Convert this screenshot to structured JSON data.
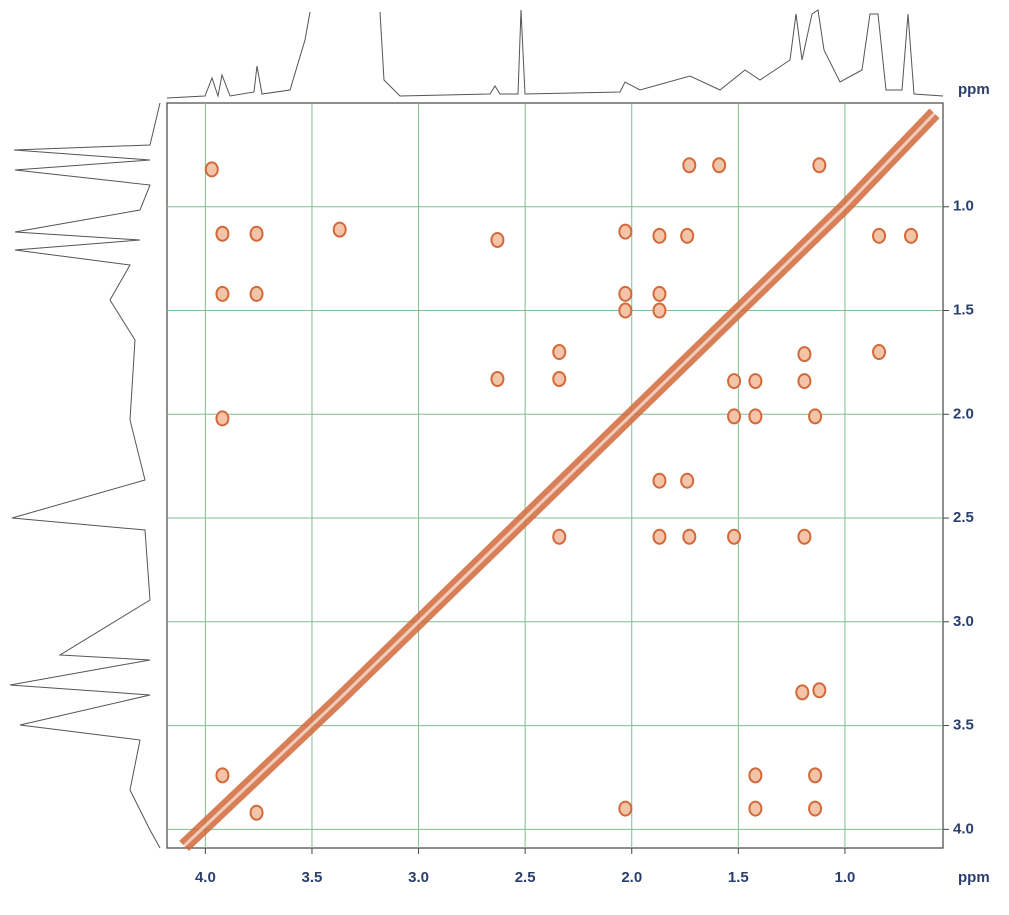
{
  "chart_data": {
    "type": "scatter",
    "x_label": "ppm",
    "y_label": "ppm",
    "xlim": [
      4.18,
      0.54
    ],
    "ylim": [
      0.5,
      4.09
    ],
    "xticks": [
      {
        "value": 4,
        "label": "4.0"
      },
      {
        "value": 3.5,
        "label": "3.5"
      },
      {
        "value": 3,
        "label": "3.0"
      },
      {
        "value": 2.5,
        "label": "2.5"
      },
      {
        "value": 2,
        "label": "2.0"
      },
      {
        "value": 1.5,
        "label": "1.5"
      },
      {
        "value": 1,
        "label": "1.0"
      }
    ],
    "yticks": [
      {
        "value": 1,
        "label": "1.0"
      },
      {
        "value": 1.5,
        "label": "1.5"
      },
      {
        "value": 2,
        "label": "2.0"
      },
      {
        "value": 2.5,
        "label": "2.5"
      },
      {
        "value": 3,
        "label": "3.0"
      },
      {
        "value": 3.5,
        "label": "3.5"
      },
      {
        "value": 4,
        "label": "4.0"
      }
    ],
    "grid": true,
    "grid_color": "#7fbf8f",
    "series": [
      {
        "mode": "markers",
        "color": "#d2693a",
        "x": [
          3.97,
          3.92,
          3.76,
          3.92,
          3.76,
          3.92,
          3.92,
          3.76,
          3.37,
          2.63,
          2.63,
          2.34,
          2.34,
          2.34,
          2.03,
          2.03,
          2.03,
          2.03,
          1.87,
          1.74,
          1.87,
          1.87,
          1.74,
          1.87,
          1.87,
          1.73,
          1.52,
          1.42,
          1.52,
          1.42,
          1.14,
          1.19,
          1.19,
          1.52,
          1.19,
          1.42,
          1.14,
          1.14,
          1.42,
          0.69,
          0.84,
          0.84,
          1.12,
          1.2,
          1.73,
          1.59,
          1.12
        ],
        "y": [
          0.82,
          1.13,
          1.13,
          1.42,
          1.42,
          2.02,
          3.74,
          3.92,
          1.11,
          1.16,
          1.83,
          1.83,
          1.7,
          2.59,
          1.12,
          1.42,
          1.5,
          3.9,
          1.14,
          1.14,
          1.42,
          1.5,
          2.32,
          2.32,
          2.59,
          2.59,
          1.84,
          1.84,
          2.01,
          2.01,
          2.01,
          1.71,
          1.84,
          2.59,
          2.59,
          3.74,
          3.74,
          3.9,
          3.9,
          1.14,
          1.14,
          1.7,
          3.33,
          3.34,
          0.8,
          0.8,
          0.8
        ]
      },
      {
        "mode": "line",
        "color": "#d2693a",
        "x": [
          4.1,
          3.38,
          2.5,
          2.0,
          1.5,
          1.0,
          0.58
        ],
        "y": [
          4.08,
          3.38,
          2.5,
          2.0,
          1.5,
          1.0,
          0.55
        ]
      }
    ]
  }
}
